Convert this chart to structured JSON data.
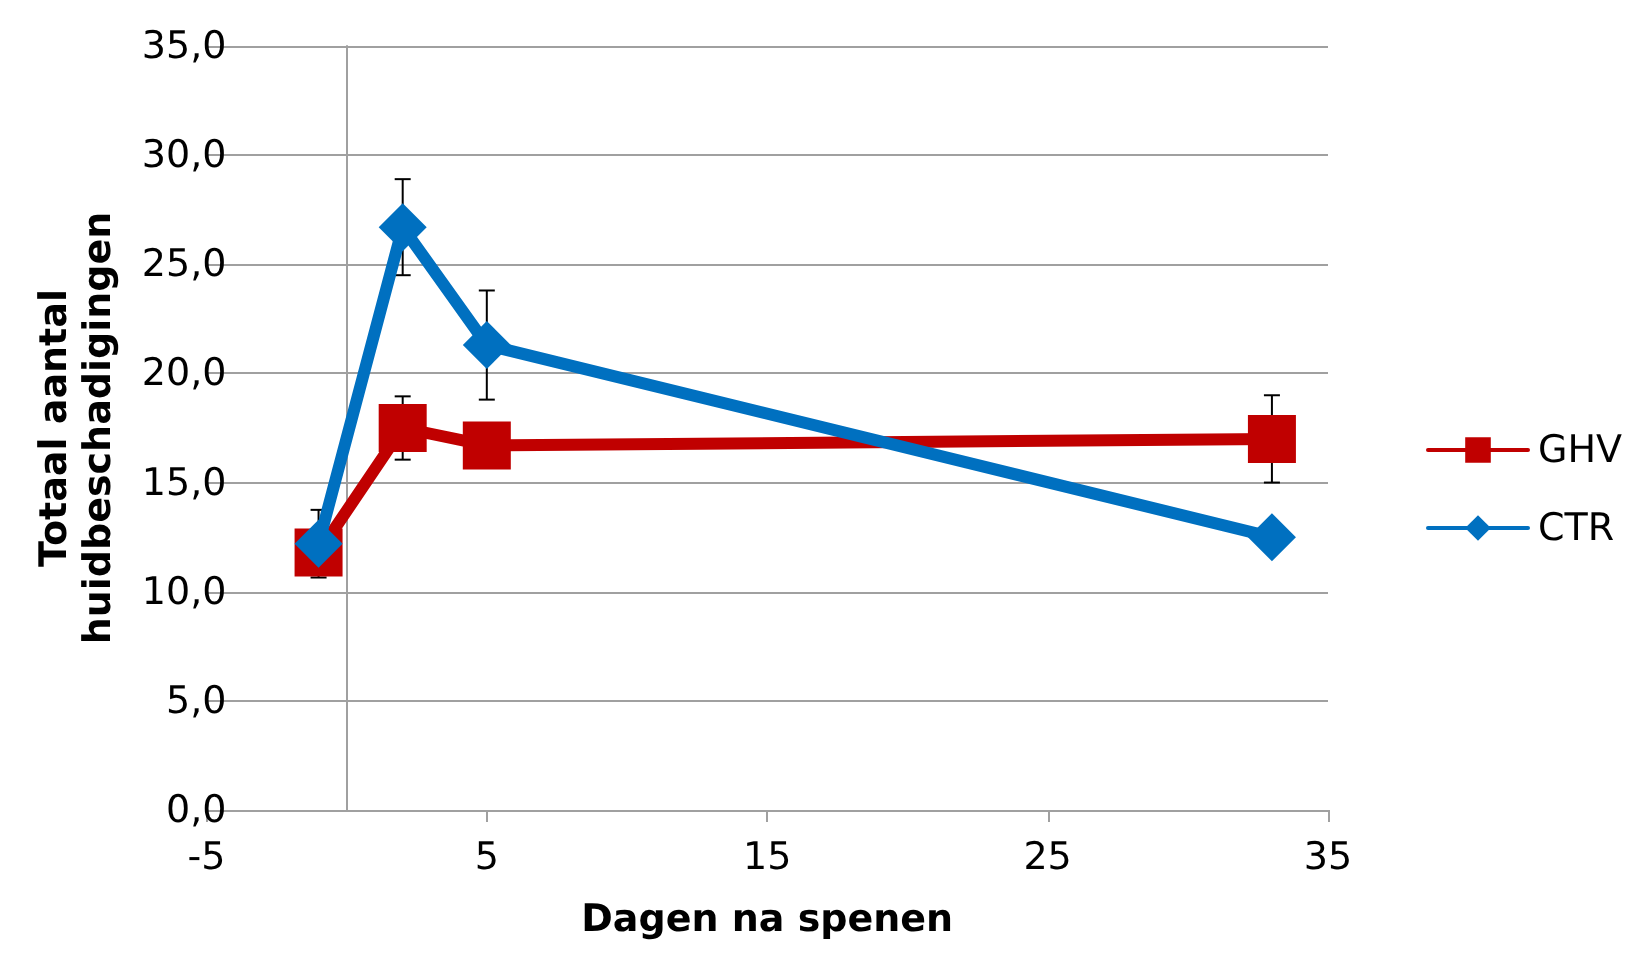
{
  "chart_data": {
    "type": "line",
    "xlabel": "Dagen na spenen",
    "ylabel": "Totaal aantal huidbeschadigingen",
    "x": [
      -1,
      2,
      5,
      33
    ],
    "series": [
      {
        "name": "GHV",
        "color": "#c00000",
        "marker": "square",
        "values": [
          11.8,
          17.5,
          16.7,
          17.0
        ],
        "errors": [
          null,
          1.45,
          null,
          2.0
        ]
      },
      {
        "name": "CTR",
        "color": "#0070c0",
        "marker": "diamond",
        "values": [
          12.2,
          26.7,
          21.3,
          12.5
        ],
        "errors": [
          1.55,
          2.2,
          2.5,
          null
        ]
      }
    ],
    "xlim": [
      -5,
      35
    ],
    "xticks": [
      -5,
      5,
      15,
      25,
      35
    ],
    "ylim": [
      0,
      35
    ],
    "yticks": [
      {
        "value": 0,
        "label": "0,0"
      },
      {
        "value": 5,
        "label": "5,0"
      },
      {
        "value": 10,
        "label": "10,0"
      },
      {
        "value": 15,
        "label": "15,0"
      },
      {
        "value": 20,
        "label": "20,0"
      },
      {
        "value": 25,
        "label": "25,0"
      },
      {
        "value": 30,
        "label": "30,0"
      },
      {
        "value": 35,
        "label": "35,0"
      }
    ],
    "grid": "y",
    "legend": "right",
    "line_style": "solid"
  }
}
